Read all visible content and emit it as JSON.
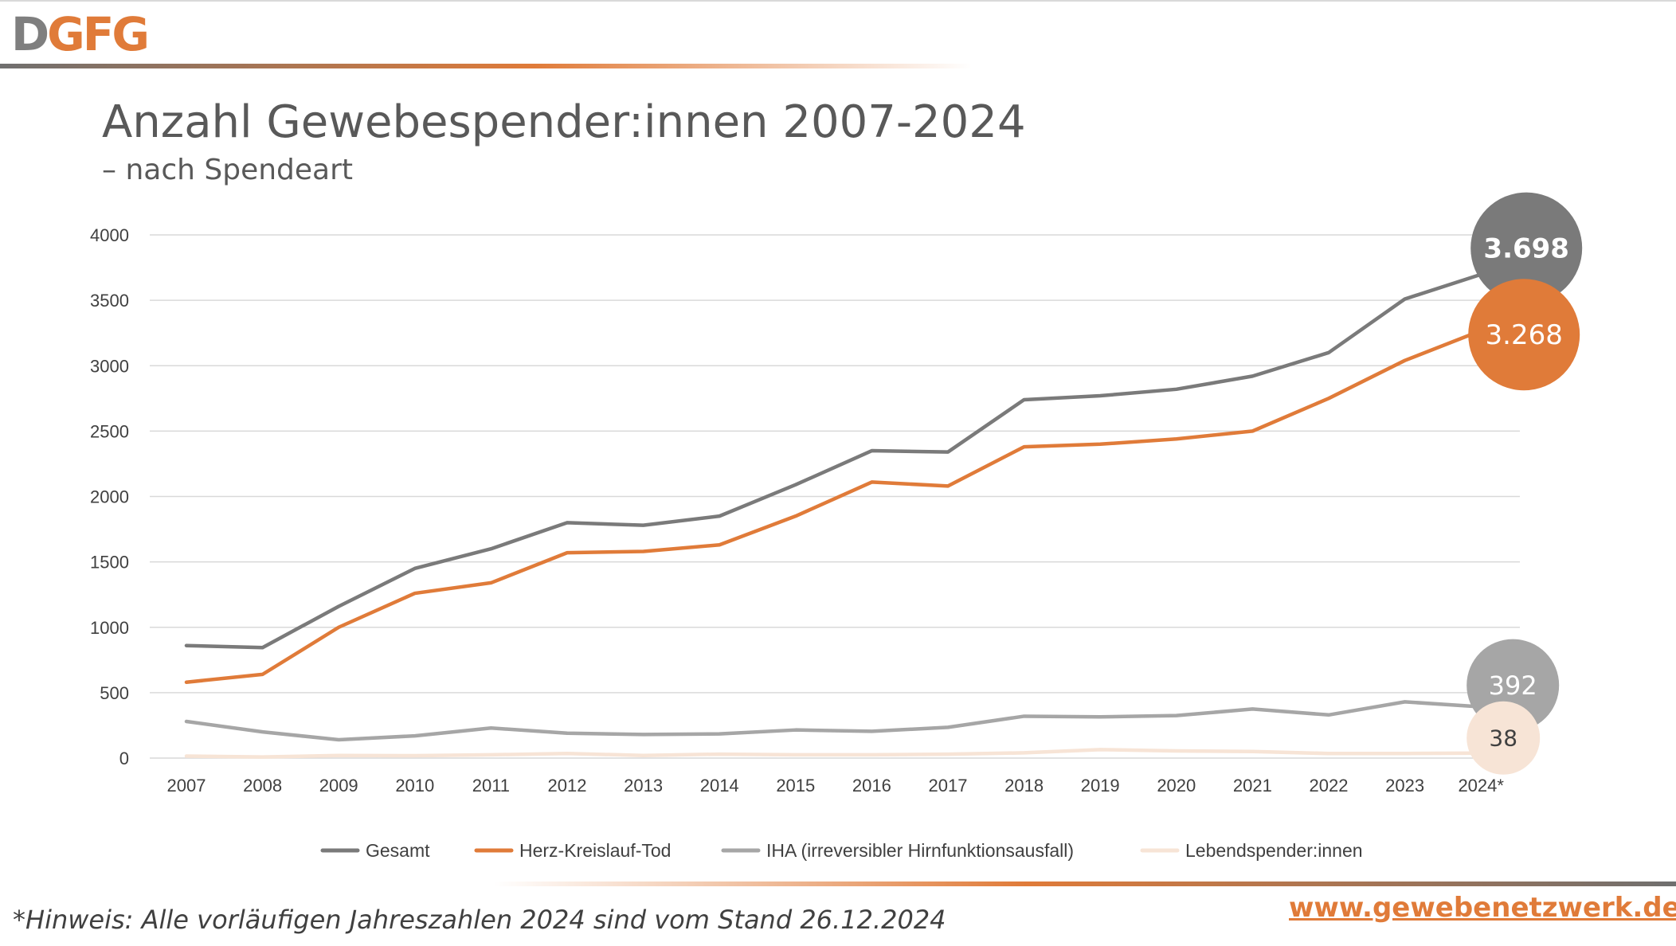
{
  "brand": {
    "logo_first": "D",
    "logo_rest": "GFG"
  },
  "colors": {
    "gesamt": "#7a7a7a",
    "hkt": "#e07b39",
    "iha": "#a6a6a6",
    "lebend": "#f7e4d6",
    "grid": "#d9d9d9",
    "axis_text": "#404040"
  },
  "footer": {
    "note": "*Hinweis: Alle vorläufigen Jahreszahlen 2024 sind vom Stand 26.12.2024",
    "website": "www.gewebenetzwerk.de"
  },
  "chart_data": {
    "type": "line",
    "title": "Anzahl Gewebespender:innen 2007-2024",
    "subtitle": "– nach Spendeart",
    "xlabel": "",
    "ylabel": "",
    "ylim": [
      0,
      4000
    ],
    "yticks": [
      0,
      500,
      1000,
      1500,
      2000,
      2500,
      3000,
      3500,
      4000
    ],
    "grid": true,
    "legend_position": "bottom",
    "categories": [
      "2007",
      "2008",
      "2009",
      "2010",
      "2011",
      "2012",
      "2013",
      "2014",
      "2015",
      "2016",
      "2017",
      "2018",
      "2019",
      "2020",
      "2021",
      "2022",
      "2023",
      "2024*"
    ],
    "series": [
      {
        "name": "Gesamt",
        "color": "#7a7a7a",
        "values": [
          860,
          845,
          1160,
          1450,
          1600,
          1800,
          1780,
          1850,
          2090,
          2350,
          2340,
          2740,
          2770,
          2820,
          2920,
          3100,
          3510,
          3698
        ]
      },
      {
        "name": "Herz-Kreislauf-Tod",
        "color": "#e07b39",
        "values": [
          580,
          640,
          1000,
          1260,
          1340,
          1570,
          1580,
          1630,
          1850,
          2110,
          2080,
          2380,
          2400,
          2440,
          2500,
          2750,
          3040,
          3268
        ]
      },
      {
        "name": "IHA (irreversibler Hirnfunktionsausfall)",
        "color": "#a6a6a6",
        "values": [
          280,
          200,
          140,
          170,
          230,
          190,
          180,
          185,
          215,
          205,
          235,
          320,
          315,
          325,
          375,
          330,
          430,
          392
        ]
      },
      {
        "name": "Lebendspender:innen",
        "color": "#f7e4d6",
        "values": [
          15,
          8,
          20,
          18,
          25,
          35,
          20,
          30,
          25,
          25,
          30,
          40,
          65,
          55,
          50,
          35,
          35,
          38
        ]
      }
    ],
    "end_labels": [
      {
        "series": 0,
        "text": "3.698",
        "fill": "#7a7a7a",
        "text_color": "#ffffff",
        "bold": true
      },
      {
        "series": 1,
        "text": "3.268",
        "fill": "#e07b39",
        "text_color": "#ffffff",
        "bold": false
      },
      {
        "series": 2,
        "text": "392",
        "fill": "#a6a6a6",
        "text_color": "#ffffff",
        "bold": false
      },
      {
        "series": 3,
        "text": "38",
        "fill": "#f7e4d6",
        "text_color": "#404040",
        "bold": false
      }
    ]
  }
}
